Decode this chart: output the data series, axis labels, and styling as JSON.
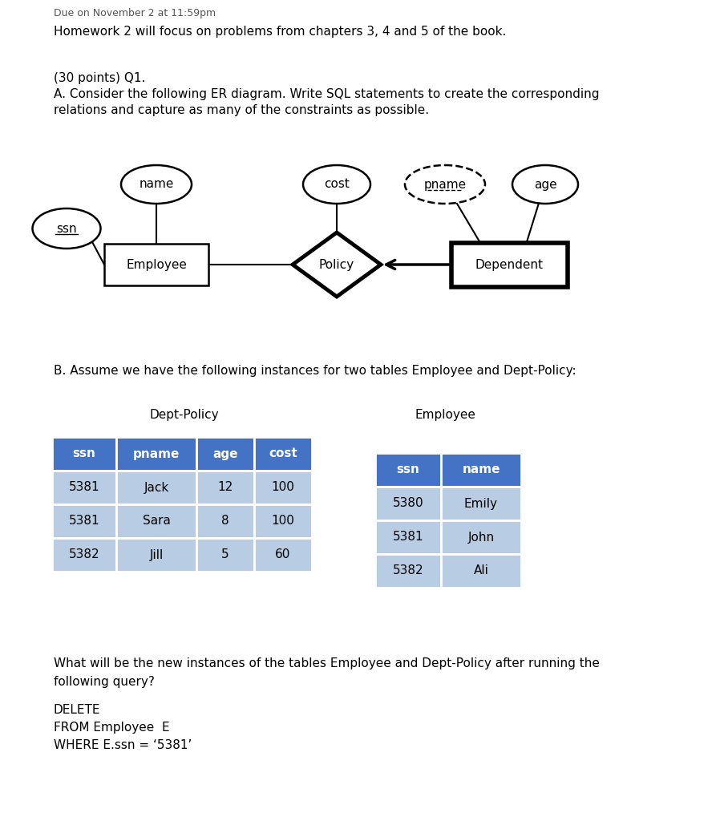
{
  "bg_color": "#ffffff",
  "text_color": "#000000",
  "header_text": "Homework 2 will focus on problems from chapters 3, 4 and 5 of the book.",
  "q1_line1": "(30 points) Q1.",
  "q1_line2": "A. Consider the following ER diagram. Write SQL statements to create the corresponding",
  "q1_line3": "relations and capture as many of the constraints as possible.",
  "q_b_text": "B. Assume we have the following instances for two tables Employee and Dept-Policy:",
  "query_question1": "What will be the new instances of the tables Employee and Dept-Policy after running the",
  "query_question2": "following query?",
  "dept_policy_title": "Dept-Policy",
  "employee_title": "Employee",
  "table_header_color": "#4472c4",
  "table_row_color": "#b8cce4",
  "dept_headers": [
    "ssn",
    "pname",
    "age",
    "cost"
  ],
  "dept_rows": [
    [
      "5381",
      "Jack",
      "12",
      "100"
    ],
    [
      "5381",
      "Sara",
      "8",
      "100"
    ],
    [
      "5382",
      "Jill",
      "5",
      "60"
    ]
  ],
  "emp_headers": [
    "ssn",
    "name"
  ],
  "emp_rows": [
    [
      "5380",
      "Emily"
    ],
    [
      "5381",
      "John"
    ],
    [
      "5382",
      "Ali"
    ]
  ],
  "emp_header_color": "#b8cce4",
  "emp_row_color": "#b8cce4"
}
